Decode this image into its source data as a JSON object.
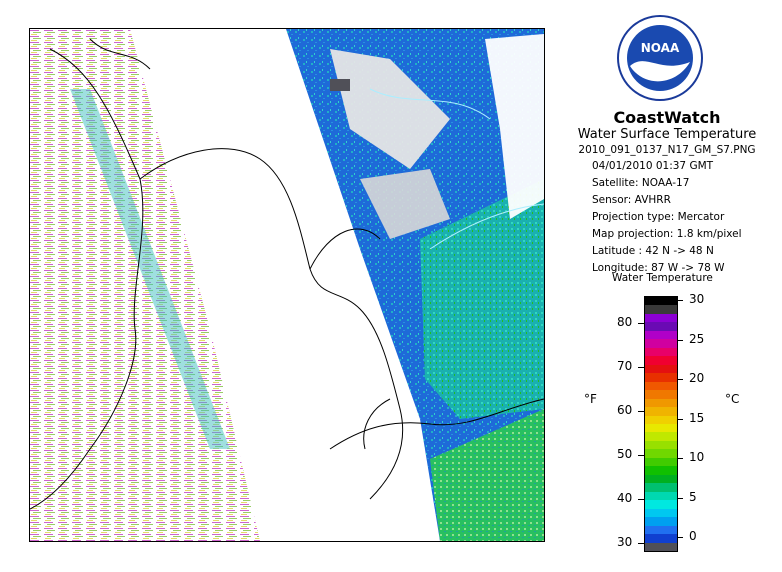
{
  "header": {
    "brand": "CoastWatch",
    "product": "Water Surface Temperature",
    "filename": "2010_091_0137_N17_GM_S7.PNG"
  },
  "metadata": {
    "datetime": "04/01/2010   01:37 GMT",
    "satellite": "Satellite: NOAA-17",
    "sensor": "Sensor: AVHRR",
    "projection_type": "Projection type:  Mercator",
    "map_projection": "Map projection: 1.8 km/pixel",
    "latitude": "Latitude : 42 N -> 48 N",
    "longitude": "Longitude: 87 W -> 78 W"
  },
  "legend": {
    "title": "Water Temperature",
    "fahrenheit_unit": "°F",
    "celsius_unit": "°C",
    "fahrenheit_ticks": [
      "80",
      "70",
      "60",
      "50",
      "40",
      "30"
    ],
    "celsius_ticks": [
      "30",
      "25",
      "20",
      "15",
      "10",
      "5",
      "0"
    ],
    "colors": [
      "#000000",
      "#3a3a3a",
      "#8c00d4",
      "#6a0ab4",
      "#b000c8",
      "#d000a0",
      "#e80068",
      "#f00030",
      "#e41010",
      "#e83000",
      "#f05800",
      "#f07800",
      "#f09800",
      "#f0b400",
      "#f0d000",
      "#e8e800",
      "#c0e800",
      "#98e000",
      "#70d800",
      "#40cc00",
      "#10c000",
      "#00b020",
      "#00c070",
      "#00d8b0",
      "#00e8e0",
      "#00c8f0",
      "#00a0f0",
      "#2070f0",
      "#1040d0",
      "#505058"
    ]
  },
  "logo": {
    "text": "NOAA"
  }
}
